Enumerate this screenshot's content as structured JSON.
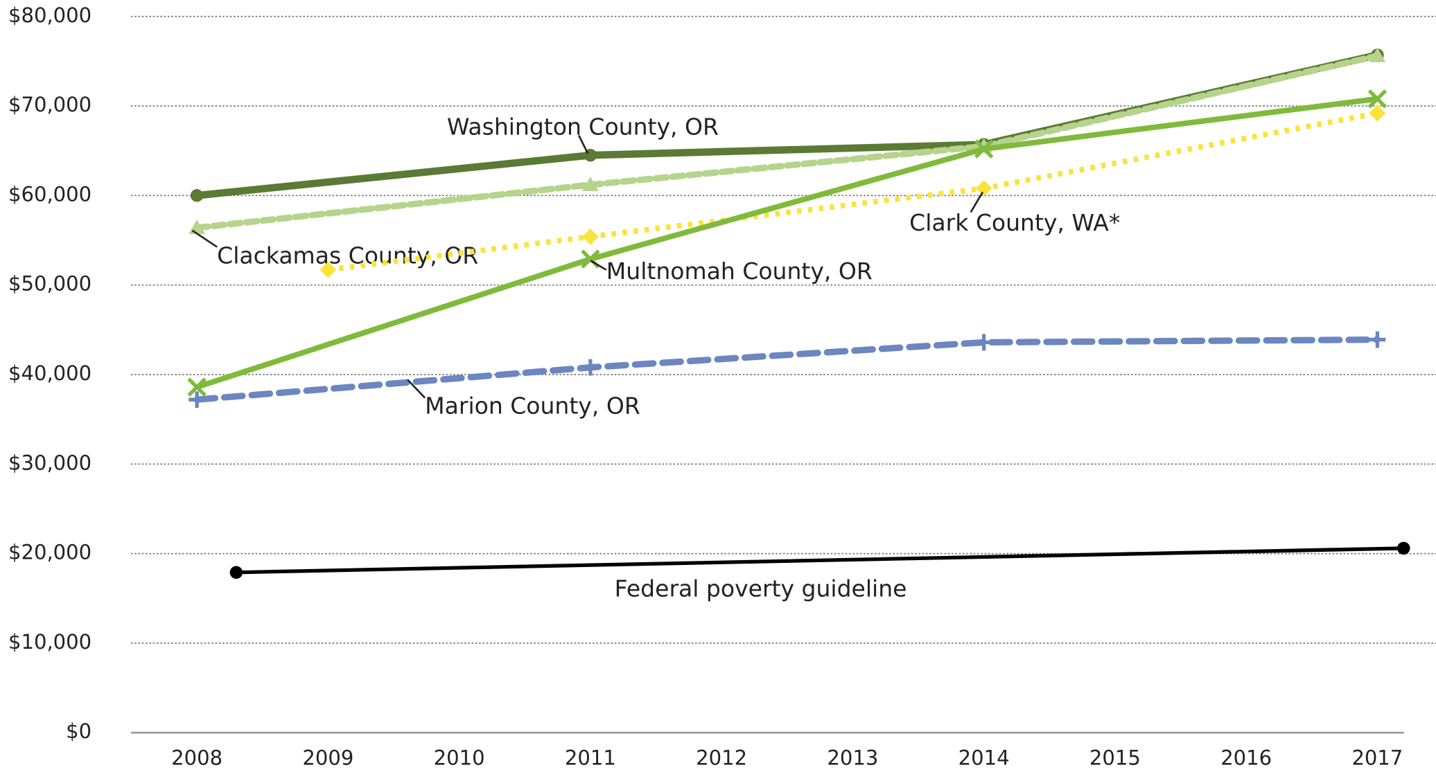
{
  "chart_data": {
    "type": "line",
    "xlim": [
      2007.5,
      2017.25
    ],
    "xticks": [
      2008,
      2009,
      2010,
      2011,
      2012,
      2013,
      2014,
      2015,
      2016,
      2017
    ],
    "ylim": [
      0,
      80000
    ],
    "yticks": [
      {
        "value": 0,
        "label": "$0"
      },
      {
        "value": 10000,
        "label": "$10,000"
      },
      {
        "value": 20000,
        "label": "$20,000"
      },
      {
        "value": 30000,
        "label": "$30,000"
      },
      {
        "value": 40000,
        "label": "$40,000"
      },
      {
        "value": 50000,
        "label": "$50,000"
      },
      {
        "value": 60000,
        "label": "$60,000"
      },
      {
        "value": 70000,
        "label": "$70,000"
      },
      {
        "value": 80000,
        "label": "$80,000"
      }
    ],
    "grid": true,
    "series": [
      {
        "name": "Washington County, OR",
        "color": "#5b7a35",
        "dash": "solid",
        "marker": "circle",
        "x": [
          2008,
          2011,
          2014,
          2017
        ],
        "values": [
          60000,
          64500,
          65700,
          75700
        ]
      },
      {
        "name": "Clackamas County, OR",
        "color": "#b6d48c",
        "dash": "dashed",
        "marker": "triangle",
        "x": [
          2008,
          2011,
          2014,
          2017
        ],
        "values": [
          56400,
          61200,
          65500,
          75600
        ]
      },
      {
        "name": "Clark County, WA*",
        "color": "#fbe33c",
        "dash": "dotted",
        "marker": "diamond",
        "x": [
          2009,
          2011,
          2014,
          2017
        ],
        "values": [
          51700,
          55400,
          60800,
          69200
        ]
      },
      {
        "name": "Multnomah County, OR",
        "color": "#80ba3c",
        "dash": "solid",
        "marker": "x",
        "x": [
          2008,
          2011,
          2014,
          2017
        ],
        "values": [
          38600,
          52900,
          65200,
          70800
        ]
      },
      {
        "name": "Marion County, OR",
        "color": "#6b86c0",
        "dash": "longdash",
        "marker": "plus",
        "x": [
          2008,
          2011,
          2014,
          2017
        ],
        "values": [
          37200,
          40800,
          43600,
          43900
        ]
      },
      {
        "name": "Federal poverty guideline",
        "color": "#000000",
        "dash": "solid",
        "marker": "dot",
        "x": [
          2008.3,
          2017.2
        ],
        "values": [
          17900,
          20600
        ]
      }
    ]
  }
}
